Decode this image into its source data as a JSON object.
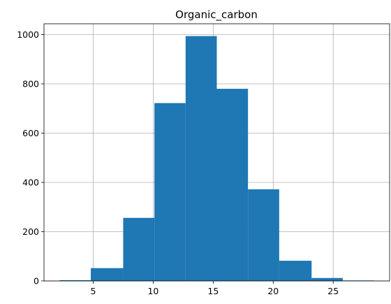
{
  "chart_data": {
    "type": "bar",
    "title": "Organic_carbon",
    "xlabel": "",
    "ylabel": "",
    "bins": [
      {
        "x0": 2.2,
        "x1": 4.8,
        "count": 3
      },
      {
        "x0": 4.8,
        "x1": 7.5,
        "count": 52
      },
      {
        "x0": 7.5,
        "x1": 10.1,
        "count": 256
      },
      {
        "x0": 10.1,
        "x1": 12.7,
        "count": 722
      },
      {
        "x0": 12.7,
        "x1": 15.3,
        "count": 994
      },
      {
        "x0": 15.3,
        "x1": 17.9,
        "count": 780
      },
      {
        "x0": 17.9,
        "x1": 20.5,
        "count": 372
      },
      {
        "x0": 20.5,
        "x1": 23.2,
        "count": 82
      },
      {
        "x0": 23.2,
        "x1": 25.8,
        "count": 12
      },
      {
        "x0": 25.8,
        "x1": 28.4,
        "count": 2
      }
    ],
    "xlim": [
      0.9,
      29.7
    ],
    "ylim": [
      0,
      1044
    ],
    "xticks": [
      "5",
      "10",
      "15",
      "20",
      "25"
    ],
    "yticks": [
      "0",
      "200",
      "400",
      "600",
      "800",
      "1000"
    ],
    "grid": true,
    "bar_color": "#1f77b4",
    "grid_color": "#b0b0b0"
  }
}
